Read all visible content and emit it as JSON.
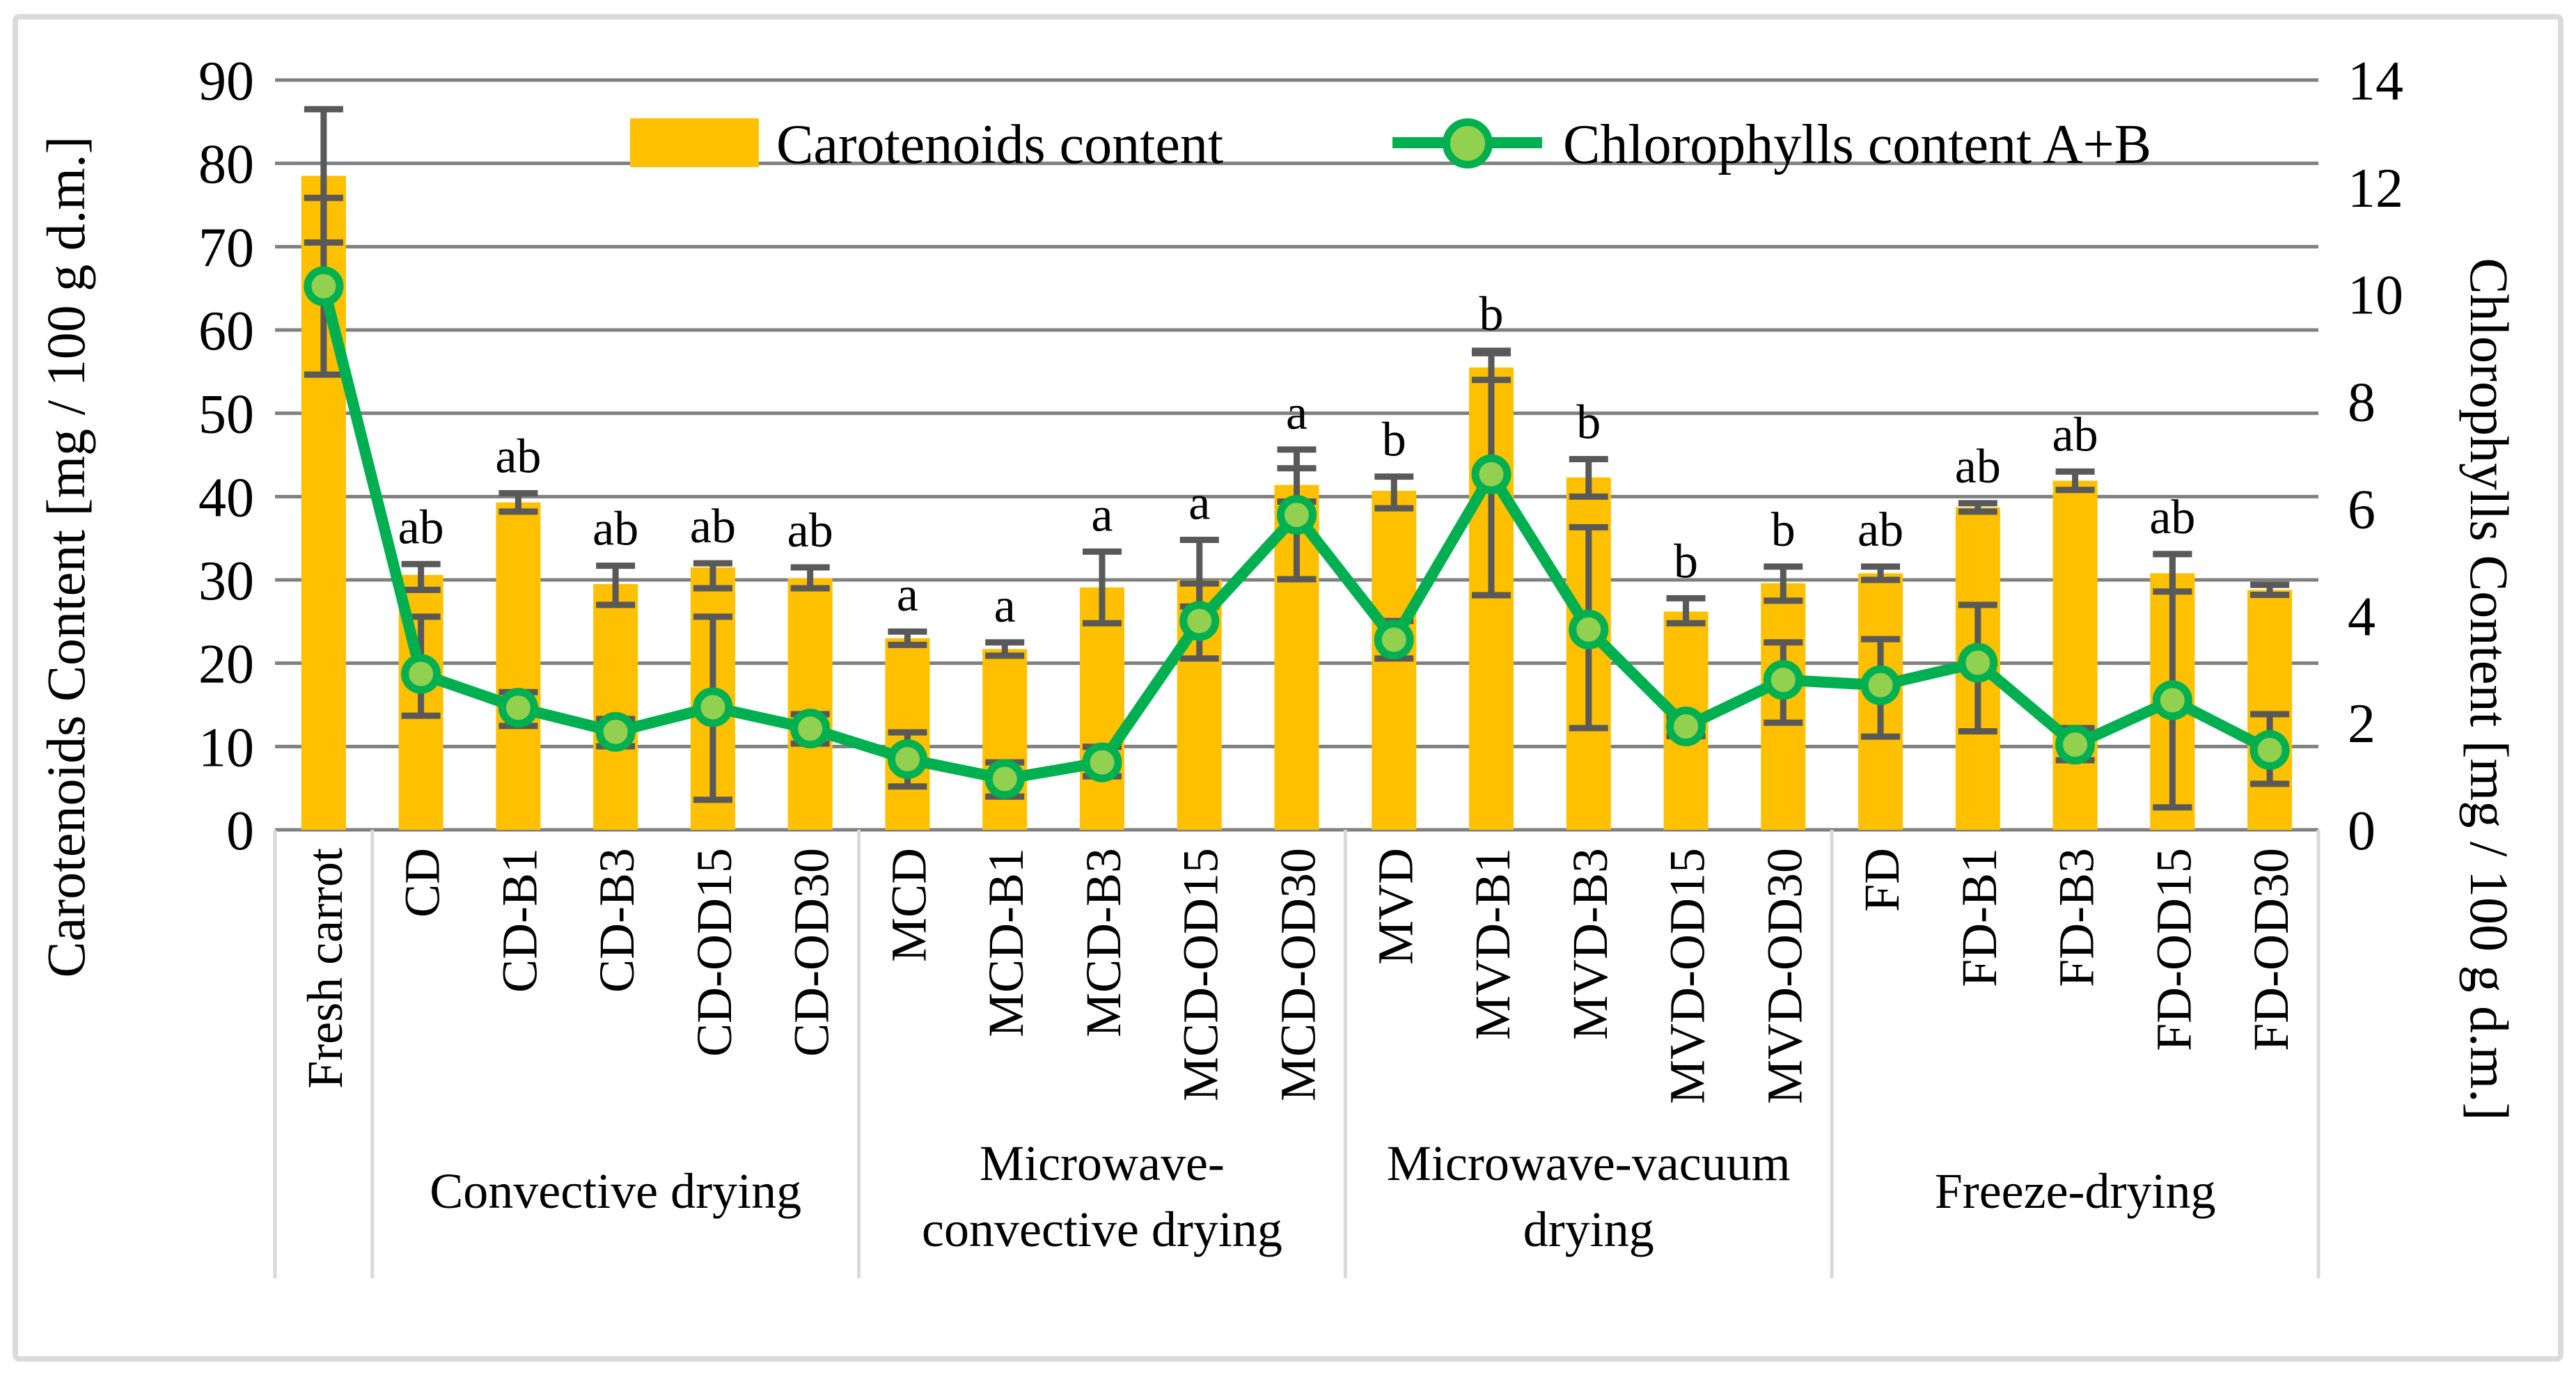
{
  "figure": {
    "left_axis_title": "Carotenoids Content [mg / 100 g  d.m.]",
    "right_axis_title": "Chlorophylls Content [mg / 100 g  d.m.]",
    "legend": {
      "carotenoids_label": "Carotenoids content",
      "chlorophylls_label": "Chlorophylls content A+B"
    }
  },
  "chart_data": {
    "type": "bar+line combo, dual axis",
    "title": "",
    "categories": [
      "Fresh carrot",
      "CD",
      "CD-B1",
      "CD-B3",
      "CD-OD15",
      "CD-OD30",
      "MCD",
      "MCD-B1",
      "MCD-B3",
      "MCD-OD15",
      "MCD-OD30",
      "MVD",
      "MVD-B1",
      "MVD-B3",
      "MVD-OD15",
      "MVD-OD30",
      "FD",
      "FD-B1",
      "FD-B3",
      "FD-OD15",
      "FD-OD30"
    ],
    "left_axis": {
      "label": "Carotenoids Content [mg / 100 g  d.m.]",
      "min": 0,
      "max": 90,
      "ticks": [
        0,
        10,
        20,
        30,
        40,
        50,
        60,
        70,
        80,
        90
      ],
      "grid": true
    },
    "right_axis": {
      "label": "Chlorophylls Content [mg / 100 g  d.m.]",
      "min": 0,
      "max": 14,
      "ticks": [
        0,
        2,
        4,
        6,
        8,
        10,
        12,
        14
      ]
    },
    "series": [
      {
        "name": "Carotenoids content",
        "chart_type": "bar",
        "axis": "left",
        "color": "#FFC000",
        "values": [
          78.5,
          30.6,
          39.3,
          29.5,
          31.5,
          30.2,
          23.0,
          21.7,
          29.1,
          30.0,
          41.4,
          40.7,
          55.5,
          42.3,
          26.2,
          29.6,
          30.8,
          38.7,
          41.9,
          30.8,
          28.8
        ],
        "error_low": [
          70.5,
          28.8,
          38.2,
          27.0,
          29.0,
          29.0,
          22.2,
          20.9,
          24.8,
          26.8,
          39.4,
          38.6,
          54.0,
          40.0,
          24.8,
          27.5,
          30.0,
          38.2,
          40.8,
          28.6,
          28.2
        ],
        "error_high": [
          86.5,
          31.9,
          40.4,
          31.7,
          32.0,
          31.5,
          23.8,
          22.5,
          33.4,
          34.8,
          43.4,
          42.4,
          57.5,
          44.5,
          27.8,
          31.6,
          31.6,
          39.2,
          43.0,
          33.1,
          29.4
        ],
        "sig_letters": [
          "",
          "ab",
          "ab",
          "ab",
          "ab",
          "ab",
          "a",
          "a",
          "a",
          "a",
          "a",
          "b",
          "b",
          "b",
          "b",
          "b",
          "ab",
          "ab",
          "ab",
          "ab",
          ""
        ],
        "sig_letter_color": "#C55A11"
      },
      {
        "name": "Chlorophylls content A+B",
        "chart_type": "line",
        "axis": "right",
        "color": "#00B050",
        "marker_fill": "#92D050",
        "values": [
          10.15,
          2.91,
          2.28,
          1.83,
          2.29,
          1.89,
          1.32,
          0.95,
          1.26,
          3.9,
          5.88,
          3.55,
          6.64,
          3.74,
          1.93,
          2.8,
          2.7,
          3.12,
          1.59,
          2.42,
          1.49
        ],
        "error_low": [
          8.5,
          2.13,
          1.94,
          1.56,
          0.56,
          1.61,
          0.81,
          0.62,
          1.0,
          3.2,
          4.68,
          3.2,
          4.38,
          1.9,
          1.75,
          2.0,
          1.74,
          1.84,
          1.3,
          0.42,
          0.86
        ],
        "error_high": [
          11.8,
          3.98,
          2.57,
          2.07,
          3.98,
          2.16,
          1.82,
          1.26,
          1.55,
          4.6,
          7.1,
          3.9,
          8.9,
          5.65,
          2.1,
          3.5,
          3.56,
          4.2,
          1.9,
          5.15,
          2.16
        ]
      }
    ],
    "group_boxes": [
      {
        "label_lines": [],
        "start": 0,
        "end": 0
      },
      {
        "label_lines": [
          "Convective drying"
        ],
        "start": 1,
        "end": 5
      },
      {
        "label_lines": [
          "Microwave-",
          "convective drying"
        ],
        "start": 6,
        "end": 10
      },
      {
        "label_lines": [
          "Microwave-vacuum",
          "drying"
        ],
        "start": 11,
        "end": 15
      },
      {
        "label_lines": [
          "Freeze-drying"
        ],
        "start": 16,
        "end": 20
      }
    ],
    "style": {
      "bar_color": "#FFC000",
      "line_color": "#00B050",
      "marker_fill": "#92D050",
      "gridline_color": "#808080",
      "error_bar_color": "#595959",
      "sig_letter_color": "#C55A11",
      "box_border_color": "#D9D9D9",
      "legend_position": "top-inside"
    }
  }
}
